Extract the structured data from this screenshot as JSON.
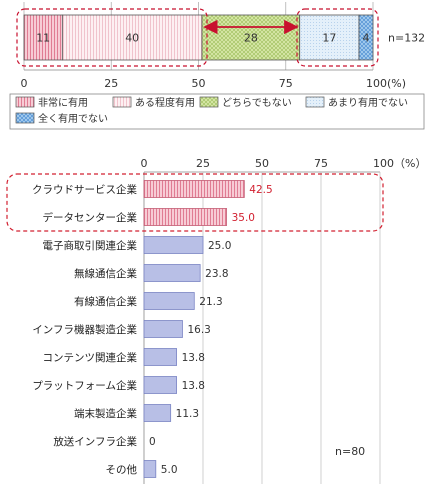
{
  "chart_data": [
    {
      "type": "bar",
      "stacked": true,
      "orientation": "horizontal",
      "series": [
        {
          "name": "非常に有用",
          "values": [
            11
          ],
          "color": "#f3b8c4"
        },
        {
          "name": "ある程度有用",
          "values": [
            40
          ],
          "color": "#fbe6ea"
        },
        {
          "name": "どちらでもない",
          "values": [
            28
          ],
          "color": "#cfe2a0"
        },
        {
          "name": "あまり有用でない",
          "values": [
            17
          ],
          "color": "#dcebf8"
        },
        {
          "name": "全く有用でない",
          "values": [
            4
          ],
          "color": "#9cc8ee"
        }
      ],
      "xlim": [
        0,
        100
      ],
      "ticks": [
        "0",
        "25",
        "50",
        "75",
        "100(%)"
      ],
      "n_label": "n=132",
      "grid": true,
      "legend": "bottom"
    },
    {
      "type": "bar",
      "orientation": "horizontal",
      "categories": [
        "クラウドサービス企業",
        "データセンター企業",
        "電子商取引関連企業",
        "無線通信企業",
        "有線通信企業",
        "インフラ機器製造企業",
        "コンテンツ関連企業",
        "プラットフォーム企業",
        "端末製造企業",
        "放送インフラ企業",
        "その他"
      ],
      "values": [
        42.5,
        35.0,
        25.0,
        23.8,
        21.3,
        16.3,
        13.8,
        13.8,
        11.3,
        0,
        5.0
      ],
      "value_labels": [
        "42.5",
        "35.0",
        "25.0",
        "23.8",
        "21.3",
        "16.3",
        "13.8",
        "13.8",
        "11.3",
        "0",
        "5.0"
      ],
      "highlight": [
        0,
        1
      ],
      "xlim": [
        0,
        100
      ],
      "ticks": [
        "0",
        "25",
        "50",
        "75",
        "100（%）"
      ],
      "n_label": "n=80",
      "grid": true,
      "colors": {
        "highlight_bar": "#f3b8c4",
        "bar": "#b8bfe6",
        "highlight_label": "#d22030",
        "dash_box": "#d22030"
      }
    }
  ]
}
